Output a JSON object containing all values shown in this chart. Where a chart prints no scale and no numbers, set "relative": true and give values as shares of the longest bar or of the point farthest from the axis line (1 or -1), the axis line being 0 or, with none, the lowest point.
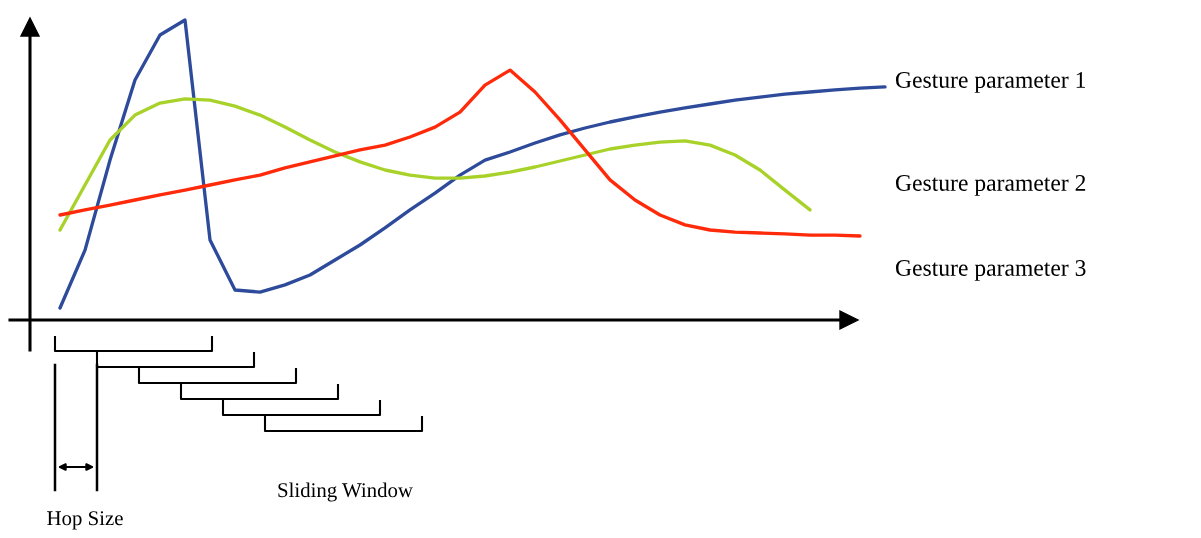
{
  "chart_data": {
    "type": "line",
    "relative": true,
    "categories": [
      null,
      null,
      null,
      null,
      null,
      null,
      null,
      null,
      null,
      null,
      null,
      null,
      null,
      null,
      null,
      null,
      null,
      null,
      null,
      null,
      null,
      null,
      null,
      null,
      null,
      null,
      null,
      null,
      null,
      null,
      null,
      null,
      null,
      null
    ],
    "series": [
      {
        "name": "Gesture parameter 1",
        "color": "#2e4b9b",
        "values": [
          0.04,
          0.233,
          0.533,
          0.8,
          0.95,
          1.0,
          0.267,
          0.1,
          0.093,
          0.117,
          0.15,
          0.2,
          0.25,
          0.307,
          0.367,
          0.423,
          0.483,
          0.533,
          0.56,
          0.59,
          0.617,
          0.64,
          0.66,
          0.677,
          0.693,
          0.707,
          0.72,
          0.733,
          0.743,
          0.753,
          0.76,
          0.767,
          0.773,
          0.777
        ]
      },
      {
        "name": "Gesture parameter 2",
        "color": "#a8d22a",
        "values": [
          0.3,
          0.45,
          0.6,
          0.683,
          0.723,
          0.737,
          0.733,
          0.713,
          0.683,
          0.643,
          0.6,
          0.56,
          0.527,
          0.5,
          0.483,
          0.473,
          0.473,
          0.48,
          0.493,
          0.51,
          0.53,
          0.55,
          0.57,
          0.583,
          0.593,
          0.597,
          0.583,
          0.55,
          0.5,
          0.433,
          0.367,
          null,
          null,
          null
        ]
      },
      {
        "name": "Gesture parameter 3",
        "color": "#ff2a0a",
        "values": [
          0.35,
          0.367,
          0.383,
          0.4,
          0.417,
          0.433,
          0.45,
          0.467,
          0.483,
          0.507,
          0.527,
          0.547,
          0.567,
          0.583,
          0.61,
          0.643,
          0.693,
          0.783,
          0.833,
          0.76,
          0.667,
          0.567,
          0.467,
          0.4,
          0.35,
          0.317,
          0.3,
          0.293,
          0.29,
          0.287,
          0.283,
          0.283,
          0.28,
          null
        ]
      }
    ],
    "annotations": [
      "Sliding Window",
      "Hop Size"
    ]
  }
}
